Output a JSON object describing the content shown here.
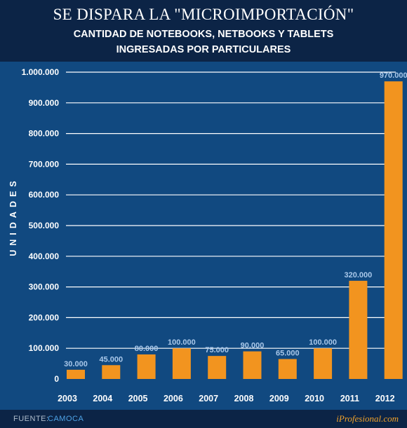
{
  "header": {
    "title": "SE DISPARA LA \"MICROIMPORTACIÓN\"",
    "subtitle_line1": "CANTIDAD DE NOTEBOOKS, NETBOOKS Y TABLETS",
    "subtitle_line2": "INGRESADAS POR PARTICULARES"
  },
  "footer": {
    "source_label": "FUENTE:",
    "source_value": "CAMOCA",
    "brand": "iProfesional.com"
  },
  "colors": {
    "bar": "#f2941f",
    "plot_background": "#114980",
    "header_background": "#0c2446",
    "gridline": "#ffffff",
    "data_label": "#a9c8ea",
    "brand": "#f0a12a"
  },
  "chart_data": {
    "type": "bar",
    "title": "SE DISPARA LA \"MICROIMPORTACIÓN\"",
    "subtitle": "CANTIDAD DE NOTEBOOKS, NETBOOKS Y TABLETS INGRESADAS POR PARTICULARES",
    "xlabel": "",
    "ylabel": "UNIDADES",
    "ylim": [
      0,
      1000000
    ],
    "grid": true,
    "categories": [
      "2003",
      "2004",
      "2005",
      "2006",
      "2007",
      "2008",
      "2009",
      "2010",
      "2011",
      "2012"
    ],
    "values": [
      30000,
      45000,
      80000,
      100000,
      75000,
      90000,
      65000,
      100000,
      320000,
      970000
    ],
    "data_labels": [
      "30.000",
      "45.000",
      "80.000",
      "100.000",
      "75.000",
      "90.000",
      "65.000",
      "100.000",
      "320.000",
      "970.000"
    ],
    "yticks": [
      {
        "value": 0,
        "label": "0"
      },
      {
        "value": 100000,
        "label": "100.000"
      },
      {
        "value": 200000,
        "label": "200.000"
      },
      {
        "value": 300000,
        "label": "300.000"
      },
      {
        "value": 400000,
        "label": "400.000"
      },
      {
        "value": 500000,
        "label": "500.000"
      },
      {
        "value": 600000,
        "label": "600.000"
      },
      {
        "value": 700000,
        "label": "700.000"
      },
      {
        "value": 800000,
        "label": "800.000"
      },
      {
        "value": 900000,
        "label": "900.000"
      },
      {
        "value": 1000000,
        "label": "1.000.000"
      }
    ]
  }
}
